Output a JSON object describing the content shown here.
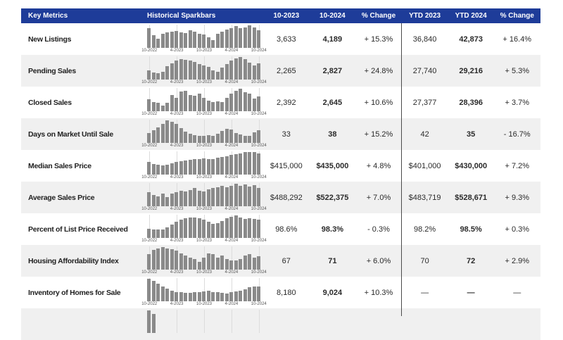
{
  "colors": {
    "header_bg": "#1e3c99",
    "alt_row_bg": "#f0f0f0",
    "bar_color": "#8a8a8a",
    "divider": "#4a4a4a"
  },
  "header": {
    "columns": [
      "Key Metrics",
      "Historical Sparkbars",
      "10-2023",
      "10-2024",
      "% Change",
      "YTD 2023",
      "YTD 2024",
      "% Change"
    ]
  },
  "sparkbar_axis_labels": [
    "10-2022",
    "4-2023",
    "10-2023",
    "4-2024",
    "10-2024"
  ],
  "rows": [
    {
      "metric": "New Listings",
      "month_prev": "3,633",
      "month_curr": "4,189",
      "month_pct": "+ 15.3%",
      "ytd_prev": "36,840",
      "ytd_curr": "42,873",
      "ytd_pct": "+ 16.4%",
      "spark": [
        0.88,
        0.55,
        0.42,
        0.62,
        0.68,
        0.72,
        0.76,
        0.7,
        0.66,
        0.78,
        0.72,
        0.62,
        0.58,
        0.48,
        0.35,
        0.62,
        0.73,
        0.8,
        0.86,
        0.96,
        0.88,
        0.92,
        1.0,
        0.9,
        0.78
      ]
    },
    {
      "metric": "Pending Sales",
      "month_prev": "2,265",
      "month_curr": "2,827",
      "month_pct": "+ 24.8%",
      "ytd_prev": "27,740",
      "ytd_curr": "29,216",
      "ytd_pct": "+ 5.3%",
      "spark": [
        0.42,
        0.3,
        0.28,
        0.35,
        0.58,
        0.72,
        0.85,
        0.92,
        0.88,
        0.85,
        0.78,
        0.68,
        0.62,
        0.55,
        0.4,
        0.35,
        0.52,
        0.7,
        0.85,
        0.95,
        1.0,
        0.9,
        0.75,
        0.62,
        0.72
      ]
    },
    {
      "metric": "Closed Sales",
      "month_prev": "2,392",
      "month_curr": "2,645",
      "month_pct": "+ 10.6%",
      "ytd_prev": "27,377",
      "ytd_curr": "28,396",
      "ytd_pct": "+ 3.7%",
      "spark": [
        0.52,
        0.42,
        0.38,
        0.25,
        0.38,
        0.72,
        0.58,
        0.88,
        0.92,
        0.72,
        0.68,
        0.78,
        0.6,
        0.48,
        0.42,
        0.45,
        0.42,
        0.58,
        0.78,
        0.92,
        1.0,
        0.85,
        0.78,
        0.55,
        0.65
      ]
    },
    {
      "metric": "Days on Market Until Sale",
      "month_prev": "33",
      "month_curr": "38",
      "month_pct": "+ 15.2%",
      "ytd_prev": "42",
      "ytd_curr": "35",
      "ytd_pct": "- 16.7%",
      "spark": [
        0.45,
        0.55,
        0.7,
        0.85,
        1.0,
        0.95,
        0.85,
        0.65,
        0.5,
        0.42,
        0.35,
        0.32,
        0.32,
        0.35,
        0.32,
        0.4,
        0.52,
        0.62,
        0.58,
        0.45,
        0.38,
        0.32,
        0.3,
        0.48,
        0.55
      ]
    },
    {
      "metric": "Median Sales Price",
      "month_prev": "$415,000",
      "month_curr": "$435,000",
      "month_pct": "+ 4.8%",
      "ytd_prev": "$401,000",
      "ytd_curr": "$430,000",
      "ytd_pct": "+ 7.2%",
      "spark": [
        0.55,
        0.48,
        0.44,
        0.4,
        0.44,
        0.5,
        0.55,
        0.58,
        0.62,
        0.66,
        0.68,
        0.68,
        0.72,
        0.7,
        0.7,
        0.74,
        0.78,
        0.82,
        0.86,
        0.9,
        0.95,
        1.0,
        1.0,
        1.0,
        0.95
      ]
    },
    {
      "metric": "Average Sales Price",
      "month_prev": "$488,292",
      "month_curr": "$522,375",
      "month_pct": "+ 7.0%",
      "ytd_prev": "$483,719",
      "ytd_curr": "$528,671",
      "ytd_pct": "+ 9.3%",
      "spark": [
        0.62,
        0.5,
        0.45,
        0.55,
        0.4,
        0.55,
        0.62,
        0.7,
        0.66,
        0.72,
        0.8,
        0.7,
        0.66,
        0.75,
        0.8,
        0.85,
        0.9,
        0.85,
        0.92,
        1.0,
        0.9,
        0.97,
        0.88,
        0.93,
        0.82
      ]
    },
    {
      "metric": "Percent of List Price Received",
      "month_prev": "98.6%",
      "month_curr": "98.3%",
      "month_pct": "- 0.3%",
      "ytd_prev": "98.2%",
      "ytd_curr": "98.5%",
      "ytd_pct": "+ 0.3%",
      "spark": [
        0.42,
        0.38,
        0.36,
        0.38,
        0.48,
        0.58,
        0.72,
        0.82,
        0.88,
        0.9,
        0.9,
        0.86,
        0.8,
        0.72,
        0.62,
        0.66,
        0.74,
        0.88,
        0.95,
        1.0,
        0.92,
        0.85,
        0.88,
        0.84,
        0.8
      ]
    },
    {
      "metric": "Housing Affordability Index",
      "month_prev": "67",
      "month_curr": "71",
      "month_pct": "+ 6.0%",
      "ytd_prev": "70",
      "ytd_curr": "72",
      "ytd_pct": "+ 2.9%",
      "spark": [
        0.68,
        0.88,
        0.95,
        1.0,
        0.95,
        0.9,
        0.85,
        0.72,
        0.62,
        0.52,
        0.48,
        0.35,
        0.52,
        0.72,
        0.68,
        0.52,
        0.62,
        0.48,
        0.42,
        0.42,
        0.48,
        0.62,
        0.68,
        0.52,
        0.58
      ]
    },
    {
      "metric": "Inventory of Homes for Sale",
      "month_prev": "8,180",
      "month_curr": "9,024",
      "month_pct": "+ 10.3%",
      "ytd_prev": "—",
      "ytd_curr": "—",
      "ytd_pct": "—",
      "spark": [
        1.0,
        0.92,
        0.78,
        0.65,
        0.55,
        0.48,
        0.42,
        0.4,
        0.38,
        0.38,
        0.4,
        0.42,
        0.44,
        0.46,
        0.42,
        0.4,
        0.38,
        0.34,
        0.4,
        0.44,
        0.48,
        0.54,
        0.62,
        0.66,
        0.66
      ]
    }
  ],
  "partial_row": {
    "spark": [
      1.0,
      0.85
    ]
  }
}
